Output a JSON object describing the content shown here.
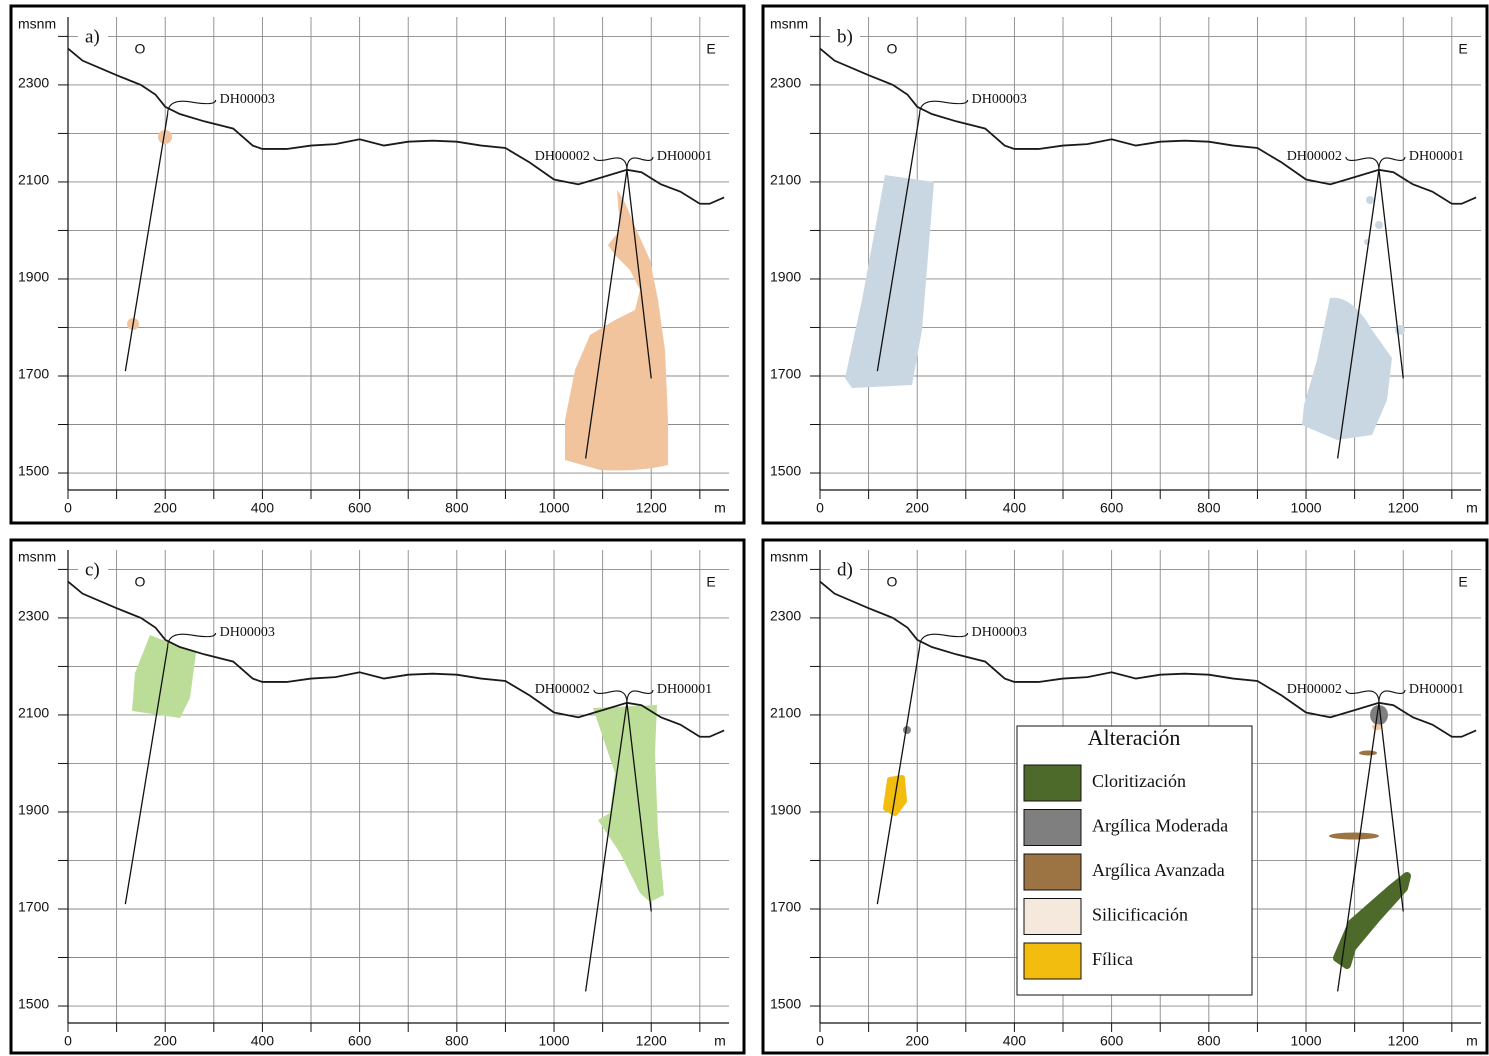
{
  "chart_data": [
    {
      "type": "line",
      "label": "a)",
      "ylabel": "msnm",
      "xlabel": "m",
      "west": "O",
      "east": "E",
      "color": "#1a1a1a",
      "grid": true,
      "x": [
        0,
        30,
        100,
        150,
        180,
        200,
        230,
        280,
        340,
        380,
        400,
        450,
        500,
        550,
        600,
        650,
        700,
        750,
        800,
        850,
        900,
        950,
        1000,
        1050,
        1100,
        1150,
        1180,
        1220,
        1260,
        1300,
        1320,
        1350
      ],
      "values": [
        2375,
        2350,
        2320,
        2300,
        2280,
        2255,
        2240,
        2225,
        2210,
        2175,
        2168,
        2168,
        2175,
        2178,
        2188,
        2175,
        2183,
        2185,
        2183,
        2175,
        2170,
        2140,
        2105,
        2095,
        2110,
        2125,
        2120,
        2095,
        2080,
        2055,
        2055,
        2068
      ],
      "drillholes": [
        {
          "name": "DH00003",
          "x": [
            205,
            118
          ],
          "y": [
            2240,
            1710
          ]
        },
        {
          "name": "DH00002",
          "x": [
            1150,
            1065
          ],
          "y": [
            2125,
            1530
          ]
        },
        {
          "name": "DH00001",
          "x": [
            1150,
            1200
          ],
          "y": [
            2125,
            1695
          ]
        }
      ],
      "xlim": [
        0,
        1360
      ],
      "ylim": [
        1465,
        2440
      ],
      "xticks": [
        0,
        200,
        400,
        600,
        800,
        1000,
        1200
      ],
      "minor_xticks": [
        100,
        300,
        500,
        700,
        900,
        1100,
        1300
      ],
      "yticks": [
        1500,
        1700,
        1900,
        2100,
        2300
      ],
      "minor_yticks": [
        1600,
        1800,
        2000,
        2200,
        2400
      ]
    },
    {
      "type": "line",
      "label": "b)",
      "ylabel": "msnm",
      "xlabel": "m",
      "west": "O",
      "east": "E",
      "color": "#1a1a1a",
      "grid": true,
      "x": [
        0,
        30,
        100,
        150,
        180,
        200,
        230,
        280,
        340,
        380,
        400,
        450,
        500,
        550,
        600,
        650,
        700,
        750,
        800,
        850,
        900,
        950,
        1000,
        1050,
        1100,
        1150,
        1180,
        1220,
        1260,
        1300,
        1320,
        1350
      ],
      "values": [
        2375,
        2350,
        2320,
        2300,
        2280,
        2255,
        2240,
        2225,
        2210,
        2175,
        2168,
        2168,
        2175,
        2178,
        2188,
        2175,
        2183,
        2185,
        2183,
        2175,
        2170,
        2140,
        2105,
        2095,
        2110,
        2125,
        2120,
        2095,
        2080,
        2055,
        2055,
        2068
      ],
      "drillholes": [
        {
          "name": "DH00003",
          "x": [
            205,
            118
          ],
          "y": [
            2240,
            1710
          ]
        },
        {
          "name": "DH00002",
          "x": [
            1150,
            1065
          ],
          "y": [
            2125,
            1530
          ]
        },
        {
          "name": "DH00001",
          "x": [
            1150,
            1200
          ],
          "y": [
            2125,
            1695
          ]
        }
      ],
      "xlim": [
        0,
        1360
      ],
      "ylim": [
        1465,
        2440
      ],
      "xticks": [
        0,
        200,
        400,
        600,
        800,
        1000,
        1200
      ],
      "minor_xticks": [
        100,
        300,
        500,
        700,
        900,
        1100,
        1300
      ],
      "yticks": [
        1500,
        1700,
        1900,
        2100,
        2300
      ],
      "minor_yticks": [
        1600,
        1800,
        2000,
        2200,
        2400
      ]
    },
    {
      "type": "line",
      "label": "c)",
      "ylabel": "msnm",
      "xlabel": "m",
      "west": "O",
      "east": "E",
      "color": "#1a1a1a",
      "grid": true,
      "x": [
        0,
        30,
        100,
        150,
        180,
        200,
        230,
        280,
        340,
        380,
        400,
        450,
        500,
        550,
        600,
        650,
        700,
        750,
        800,
        850,
        900,
        950,
        1000,
        1050,
        1100,
        1150,
        1180,
        1220,
        1260,
        1300,
        1320,
        1350
      ],
      "values": [
        2375,
        2350,
        2320,
        2300,
        2280,
        2255,
        2240,
        2225,
        2210,
        2175,
        2168,
        2168,
        2175,
        2178,
        2188,
        2175,
        2183,
        2185,
        2183,
        2175,
        2170,
        2140,
        2105,
        2095,
        2110,
        2125,
        2120,
        2095,
        2080,
        2055,
        2055,
        2068
      ],
      "drillholes": [
        {
          "name": "DH00003",
          "x": [
            205,
            118
          ],
          "y": [
            2240,
            1710
          ]
        },
        {
          "name": "DH00002",
          "x": [
            1150,
            1065
          ],
          "y": [
            2125,
            1530
          ]
        },
        {
          "name": "DH00001",
          "x": [
            1150,
            1200
          ],
          "y": [
            2125,
            1695
          ]
        }
      ],
      "xlim": [
        0,
        1360
      ],
      "ylim": [
        1465,
        2440
      ],
      "xticks": [
        0,
        200,
        400,
        600,
        800,
        1000,
        1200
      ],
      "minor_xticks": [
        100,
        300,
        500,
        700,
        900,
        1100,
        1300
      ],
      "yticks": [
        1500,
        1700,
        1900,
        2100,
        2300
      ],
      "minor_yticks": [
        1600,
        1800,
        2000,
        2200,
        2400
      ]
    },
    {
      "type": "line",
      "label": "d)",
      "ylabel": "msnm",
      "xlabel": "m",
      "west": "O",
      "east": "E",
      "color": "#1a1a1a",
      "grid": true,
      "x": [
        0,
        30,
        100,
        150,
        180,
        200,
        230,
        280,
        340,
        380,
        400,
        450,
        500,
        550,
        600,
        650,
        700,
        750,
        800,
        850,
        900,
        950,
        1000,
        1050,
        1100,
        1150,
        1180,
        1220,
        1260,
        1300,
        1320,
        1350
      ],
      "values": [
        2375,
        2350,
        2320,
        2300,
        2280,
        2255,
        2240,
        2225,
        2210,
        2175,
        2168,
        2168,
        2175,
        2178,
        2188,
        2175,
        2183,
        2185,
        2183,
        2175,
        2170,
        2140,
        2105,
        2095,
        2110,
        2125,
        2120,
        2095,
        2080,
        2055,
        2055,
        2068
      ],
      "drillholes": [
        {
          "name": "DH00003",
          "x": [
            205,
            118
          ],
          "y": [
            2240,
            1710
          ]
        },
        {
          "name": "DH00002",
          "x": [
            1150,
            1065
          ],
          "y": [
            2125,
            1530
          ]
        },
        {
          "name": "DH00001",
          "x": [
            1150,
            1200
          ],
          "y": [
            2125,
            1695
          ]
        }
      ],
      "xlim": [
        0,
        1360
      ],
      "ylim": [
        1465,
        2440
      ],
      "xticks": [
        0,
        200,
        400,
        600,
        800,
        1000,
        1200
      ],
      "minor_xticks": [
        100,
        300,
        500,
        700,
        900,
        1100,
        1300
      ],
      "yticks": [
        1500,
        1700,
        1900,
        2100,
        2300
      ],
      "minor_yticks": [
        1600,
        1800,
        2000,
        2200,
        2400
      ],
      "legend": {
        "title": "Alteración",
        "items": [
          {
            "name": "Cloritización",
            "color": "#4e6a2a"
          },
          {
            "name": "Argílica Moderada",
            "color": "#7f7f7f"
          },
          {
            "name": "Argílica Avanzada",
            "color": "#9c7443"
          },
          {
            "name": "Silicificación",
            "color": "#f4e9dc"
          },
          {
            "name": "Fílica",
            "color": "#f2bd0e"
          }
        ]
      }
    }
  ]
}
